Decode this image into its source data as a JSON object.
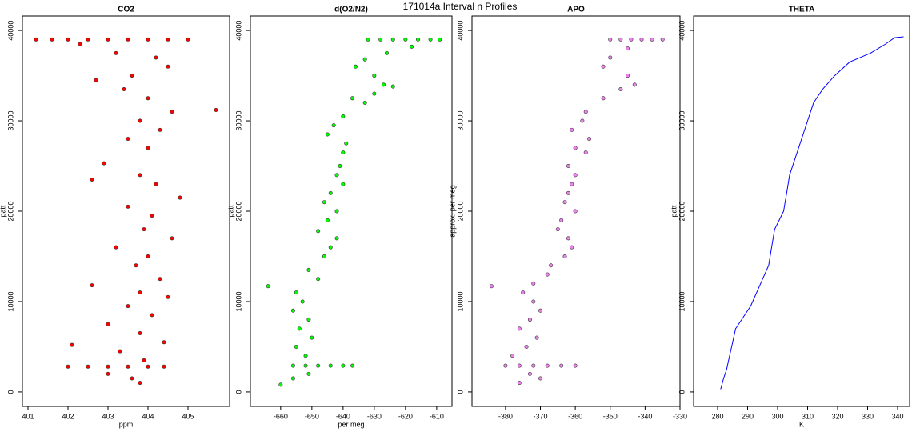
{
  "title": "171014a   Interval n Profiles",
  "chart_data": [
    {
      "type": "scatter",
      "title": "CO2",
      "xlabel": "ppm",
      "ylabel": "patt",
      "color": "#ff0000",
      "x": [
        401.2,
        401.6,
        402.0,
        402.5,
        403.0,
        403.5,
        404.0,
        404.5,
        405.0,
        402.3,
        403.2,
        404.2,
        404.5,
        403.6,
        402.7,
        403.4,
        404.0,
        405.7,
        404.6,
        403.8,
        404.3,
        403.5,
        404.0,
        402.9,
        403.8,
        404.2,
        402.6,
        404.8,
        403.5,
        404.1,
        403.9,
        404.6,
        403.2,
        404.0,
        403.7,
        404.3,
        402.6,
        403.8,
        404.5,
        403.5,
        404.1,
        403.0,
        403.8,
        404.4,
        402.1,
        403.3,
        403.9,
        402.0,
        402.5,
        403.0,
        403.5,
        404.0,
        404.4,
        403.0,
        403.6,
        403.8
      ],
      "y": [
        39000,
        39000,
        39000,
        39000,
        39000,
        39000,
        39000,
        39000,
        39000,
        38500,
        37500,
        37000,
        36000,
        35000,
        34500,
        33500,
        32500,
        31200,
        31000,
        30000,
        29000,
        28000,
        27000,
        25300,
        24000,
        23000,
        23500,
        21500,
        20500,
        19500,
        18000,
        17000,
        16000,
        15000,
        14000,
        12500,
        11800,
        11000,
        10500,
        9500,
        8500,
        7500,
        6500,
        5500,
        5200,
        4500,
        3500,
        2800,
        2800,
        2800,
        2800,
        2800,
        2800,
        2000,
        1500,
        1000
      ],
      "xlim": [
        400.86,
        406.04
      ],
      "ylim": [
        -1600,
        41600
      ],
      "xticks": [
        401,
        402,
        403,
        404,
        405
      ],
      "yticks": [
        0,
        10000,
        20000,
        30000,
        40000
      ]
    },
    {
      "type": "scatter",
      "title": "d(O2/N2)",
      "xlabel": "per meg",
      "ylabel": "patt",
      "color": "#00ff00",
      "x": [
        -632,
        -628,
        -624,
        -620,
        -616,
        -612,
        -609,
        -618,
        -626,
        -633,
        -636,
        -630,
        -627,
        -624,
        -630,
        -637,
        -633,
        -640,
        -643,
        -645,
        -639,
        -640,
        -641,
        -642,
        -640,
        -644,
        -646,
        -642,
        -645,
        -648,
        -642,
        -644,
        -646,
        -651,
        -648,
        -664,
        -655,
        -653,
        -656,
        -651,
        -654,
        -650,
        -655,
        -652,
        -656,
        -652,
        -648,
        -644,
        -640,
        -637,
        -651,
        -656,
        -660
      ],
      "y": [
        39000,
        39000,
        39000,
        39000,
        39000,
        39000,
        39000,
        38200,
        37500,
        36800,
        36000,
        35000,
        34000,
        33800,
        33000,
        32500,
        32000,
        30500,
        29500,
        28500,
        27500,
        26500,
        25000,
        24000,
        23000,
        22000,
        21000,
        20000,
        19000,
        17800,
        17000,
        16000,
        15000,
        13500,
        12500,
        11700,
        11000,
        10000,
        9000,
        8000,
        7000,
        6000,
        5000,
        4000,
        2900,
        2900,
        2900,
        2900,
        2900,
        2900,
        2000,
        1500,
        800
      ],
      "xlim": [
        -669.7,
        -605.1
      ],
      "ylim": [
        -1600,
        41600
      ],
      "xticks": [
        -660,
        -650,
        -640,
        -630,
        -620,
        -610
      ],
      "yticks": [
        0,
        10000,
        20000,
        30000,
        40000
      ]
    },
    {
      "type": "scatter",
      "title": "APO",
      "ylabel": "approx. per meg",
      "color": "#ee82ee",
      "x": [
        -350,
        -347,
        -344,
        -341,
        -338,
        -335,
        -345,
        -350,
        -352,
        -345,
        -343,
        -347,
        -352,
        -357,
        -358,
        -361,
        -356,
        -360,
        -357,
        -362,
        -360,
        -361,
        -362,
        -363,
        -360,
        -364,
        -365,
        -362,
        -361,
        -363,
        -367,
        -368,
        -372,
        -384,
        -375,
        -372,
        -370,
        -373,
        -376,
        -371,
        -374,
        -378,
        -380,
        -376,
        -372,
        -368,
        -364,
        -360,
        -373,
        -370,
        -376
      ],
      "y": [
        39000,
        39000,
        39000,
        39000,
        39000,
        39000,
        38000,
        37000,
        36000,
        35000,
        34000,
        33500,
        32500,
        31000,
        30000,
        29000,
        28000,
        27000,
        26500,
        25000,
        24000,
        23000,
        22000,
        21000,
        20000,
        19000,
        18000,
        17000,
        16000,
        15000,
        14000,
        13000,
        12000,
        11700,
        11000,
        10000,
        9000,
        8000,
        7000,
        6000,
        5000,
        4000,
        2900,
        2900,
        2900,
        2900,
        2900,
        2900,
        2000,
        1500,
        1000
      ],
      "xlim": [
        -389.6,
        -330
      ],
      "ylim": [
        -1600,
        41600
      ],
      "xticks": [
        -380,
        -370,
        -360,
        -350,
        -340,
        -330
      ],
      "yticks": [
        0,
        10000,
        20000,
        30000,
        40000
      ]
    },
    {
      "type": "line",
      "title": "THETA",
      "xlabel": "K",
      "ylabel": "patt",
      "color": "#0000ff",
      "x": [
        281,
        282,
        283,
        284,
        285,
        286,
        289,
        291,
        293,
        295,
        297,
        298,
        299,
        302,
        303,
        304,
        306,
        308,
        310,
        312,
        315,
        319,
        324,
        331,
        336,
        339,
        342
      ],
      "y": [
        300,
        1500,
        2500,
        4000,
        5500,
        7000,
        8500,
        9500,
        11000,
        12500,
        14000,
        16000,
        18000,
        20000,
        22000,
        24000,
        26000,
        28000,
        30000,
        32000,
        33500,
        35000,
        36500,
        37500,
        38500,
        39200,
        39300
      ],
      "xlim": [
        272,
        344
      ],
      "ylim": [
        -1600,
        41600
      ],
      "xticks": [
        280,
        290,
        300,
        310,
        320,
        330,
        340
      ],
      "yticks": [
        0,
        10000,
        20000,
        30000,
        40000
      ]
    }
  ]
}
